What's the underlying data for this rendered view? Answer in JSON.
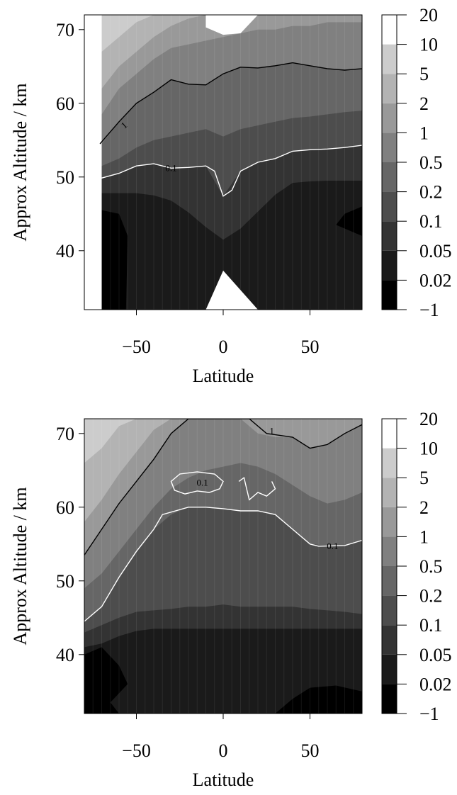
{
  "chart_data": [
    {
      "type": "heatmap",
      "title": "",
      "xlabel": "Latitude",
      "ylabel": "Approx Altitude / km",
      "xlim": [
        -80,
        80
      ],
      "ylim": [
        32,
        72
      ],
      "x_ticks": [
        -50,
        0,
        50
      ],
      "y_ticks": [
        40,
        50,
        60,
        70
      ],
      "x_tick_labels": [
        "−50",
        "0",
        "50"
      ],
      "y_tick_labels": [
        "40",
        "50",
        "60",
        "70"
      ],
      "color_scale": {
        "levels": [
          -1,
          0.02,
          0.05,
          0.1,
          0.2,
          0.5,
          1,
          2,
          5,
          10,
          20
        ],
        "labels": [
          "−1",
          "0.02",
          "0.05",
          "0.1",
          "0.2",
          "0.5",
          "1",
          "2",
          "5",
          "10",
          "20"
        ],
        "colors": [
          "#000000",
          "#1a1a1a",
          "#333333",
          "#4d4d4d",
          "#666666",
          "#808080",
          "#999999",
          "#b3b3b3",
          "#cccccc",
          "#ffffff"
        ]
      },
      "contours": [
        {
          "label": "1",
          "color": "#000000",
          "points": [
            [
              -71,
              54.5
            ],
            [
              -60,
              57.5
            ],
            [
              -50,
              60
            ],
            [
              -40,
              61.5
            ],
            [
              -30,
              63.2
            ],
            [
              -20,
              62.6
            ],
            [
              -10,
              62.5
            ],
            [
              0,
              64
            ],
            [
              10,
              64.9
            ],
            [
              20,
              64.8
            ],
            [
              30,
              65.1
            ],
            [
              40,
              65.5
            ],
            [
              50,
              65.1
            ],
            [
              60,
              64.7
            ],
            [
              70,
              64.5
            ],
            [
              80,
              64.7
            ]
          ]
        },
        {
          "label": "0.1",
          "color": "#ffffff",
          "points": [
            [
              -71,
              49.8
            ],
            [
              -60,
              50.5
            ],
            [
              -50,
              51.5
            ],
            [
              -40,
              51.8
            ],
            [
              -30,
              51.2
            ],
            [
              -20,
              51.3
            ],
            [
              -10,
              51.5
            ],
            [
              -5,
              50.8
            ],
            [
              0,
              47.4
            ],
            [
              5,
              48.2
            ],
            [
              10,
              50.8
            ],
            [
              20,
              52
            ],
            [
              30,
              52.5
            ],
            [
              40,
              53.5
            ],
            [
              50,
              53.7
            ],
            [
              60,
              53.8
            ],
            [
              70,
              54
            ],
            [
              80,
              54.3
            ]
          ]
        }
      ]
    },
    {
      "type": "heatmap",
      "title": "",
      "xlabel": "Latitude",
      "ylabel": "Approx Altitude / km",
      "xlim": [
        -80,
        80
      ],
      "ylim": [
        32,
        72
      ],
      "x_ticks": [
        -50,
        0,
        50
      ],
      "y_ticks": [
        40,
        50,
        60,
        70
      ],
      "x_tick_labels": [
        "−50",
        "0",
        "50"
      ],
      "y_tick_labels": [
        "40",
        "50",
        "60",
        "70"
      ],
      "color_scale": {
        "levels": [
          -1,
          0.02,
          0.05,
          0.1,
          0.2,
          0.5,
          1,
          2,
          5,
          10,
          20
        ],
        "labels": [
          "−1",
          "0.02",
          "0.05",
          "0.1",
          "0.2",
          "0.5",
          "1",
          "2",
          "5",
          "10",
          "20"
        ],
        "colors": [
          "#000000",
          "#1a1a1a",
          "#333333",
          "#4d4d4d",
          "#666666",
          "#808080",
          "#999999",
          "#b3b3b3",
          "#cccccc",
          "#ffffff"
        ]
      },
      "contours": [
        {
          "label": "1",
          "color": "#000000",
          "points": [
            [
              -80,
              53.5
            ],
            [
              -70,
              57
            ],
            [
              -60,
              60.5
            ],
            [
              -50,
              63.5
            ],
            [
              -40,
              66.5
            ],
            [
              -30,
              70
            ],
            [
              -20,
              72
            ],
            [
              15,
              72
            ],
            [
              25,
              70
            ],
            [
              40,
              69.5
            ],
            [
              50,
              68
            ],
            [
              60,
              68.5
            ],
            [
              70,
              70
            ],
            [
              80,
              71.2
            ]
          ]
        },
        {
          "label": "0.1",
          "color": "#ffffff",
          "points": [
            [
              -80,
              44.5
            ],
            [
              -70,
              46.5
            ],
            [
              -60,
              50.5
            ],
            [
              -50,
              54
            ],
            [
              -40,
              57
            ],
            [
              -35,
              59
            ],
            [
              -20,
              60
            ],
            [
              -10,
              60
            ],
            [
              0,
              59.8
            ],
            [
              10,
              59.5
            ],
            [
              15,
              59.5
            ],
            [
              20,
              59.5
            ],
            [
              30,
              59
            ],
            [
              40,
              57
            ],
            [
              50,
              55
            ],
            [
              55,
              54.7
            ],
            [
              70,
              54.8
            ],
            [
              80,
              55.5
            ]
          ]
        },
        {
          "label": "0.1",
          "color": "#ffffff",
          "closed": true,
          "points": [
            [
              -30,
              63.5
            ],
            [
              -25,
              64.5
            ],
            [
              -15,
              64.8
            ],
            [
              -5,
              64.5
            ],
            [
              0,
              63.5
            ],
            [
              -2,
              62.5
            ],
            [
              -8,
              62
            ],
            [
              -15,
              62.2
            ],
            [
              -22,
              61.8
            ],
            [
              -28,
              62.3
            ]
          ]
        },
        {
          "label": "",
          "color": "#ffffff",
          "points": [
            [
              9,
              63.5
            ],
            [
              12,
              64
            ],
            [
              15,
              61
            ],
            [
              20,
              62
            ],
            [
              25,
              61.5
            ],
            [
              30,
              62.5
            ],
            [
              28,
              63.5
            ]
          ]
        }
      ]
    }
  ]
}
